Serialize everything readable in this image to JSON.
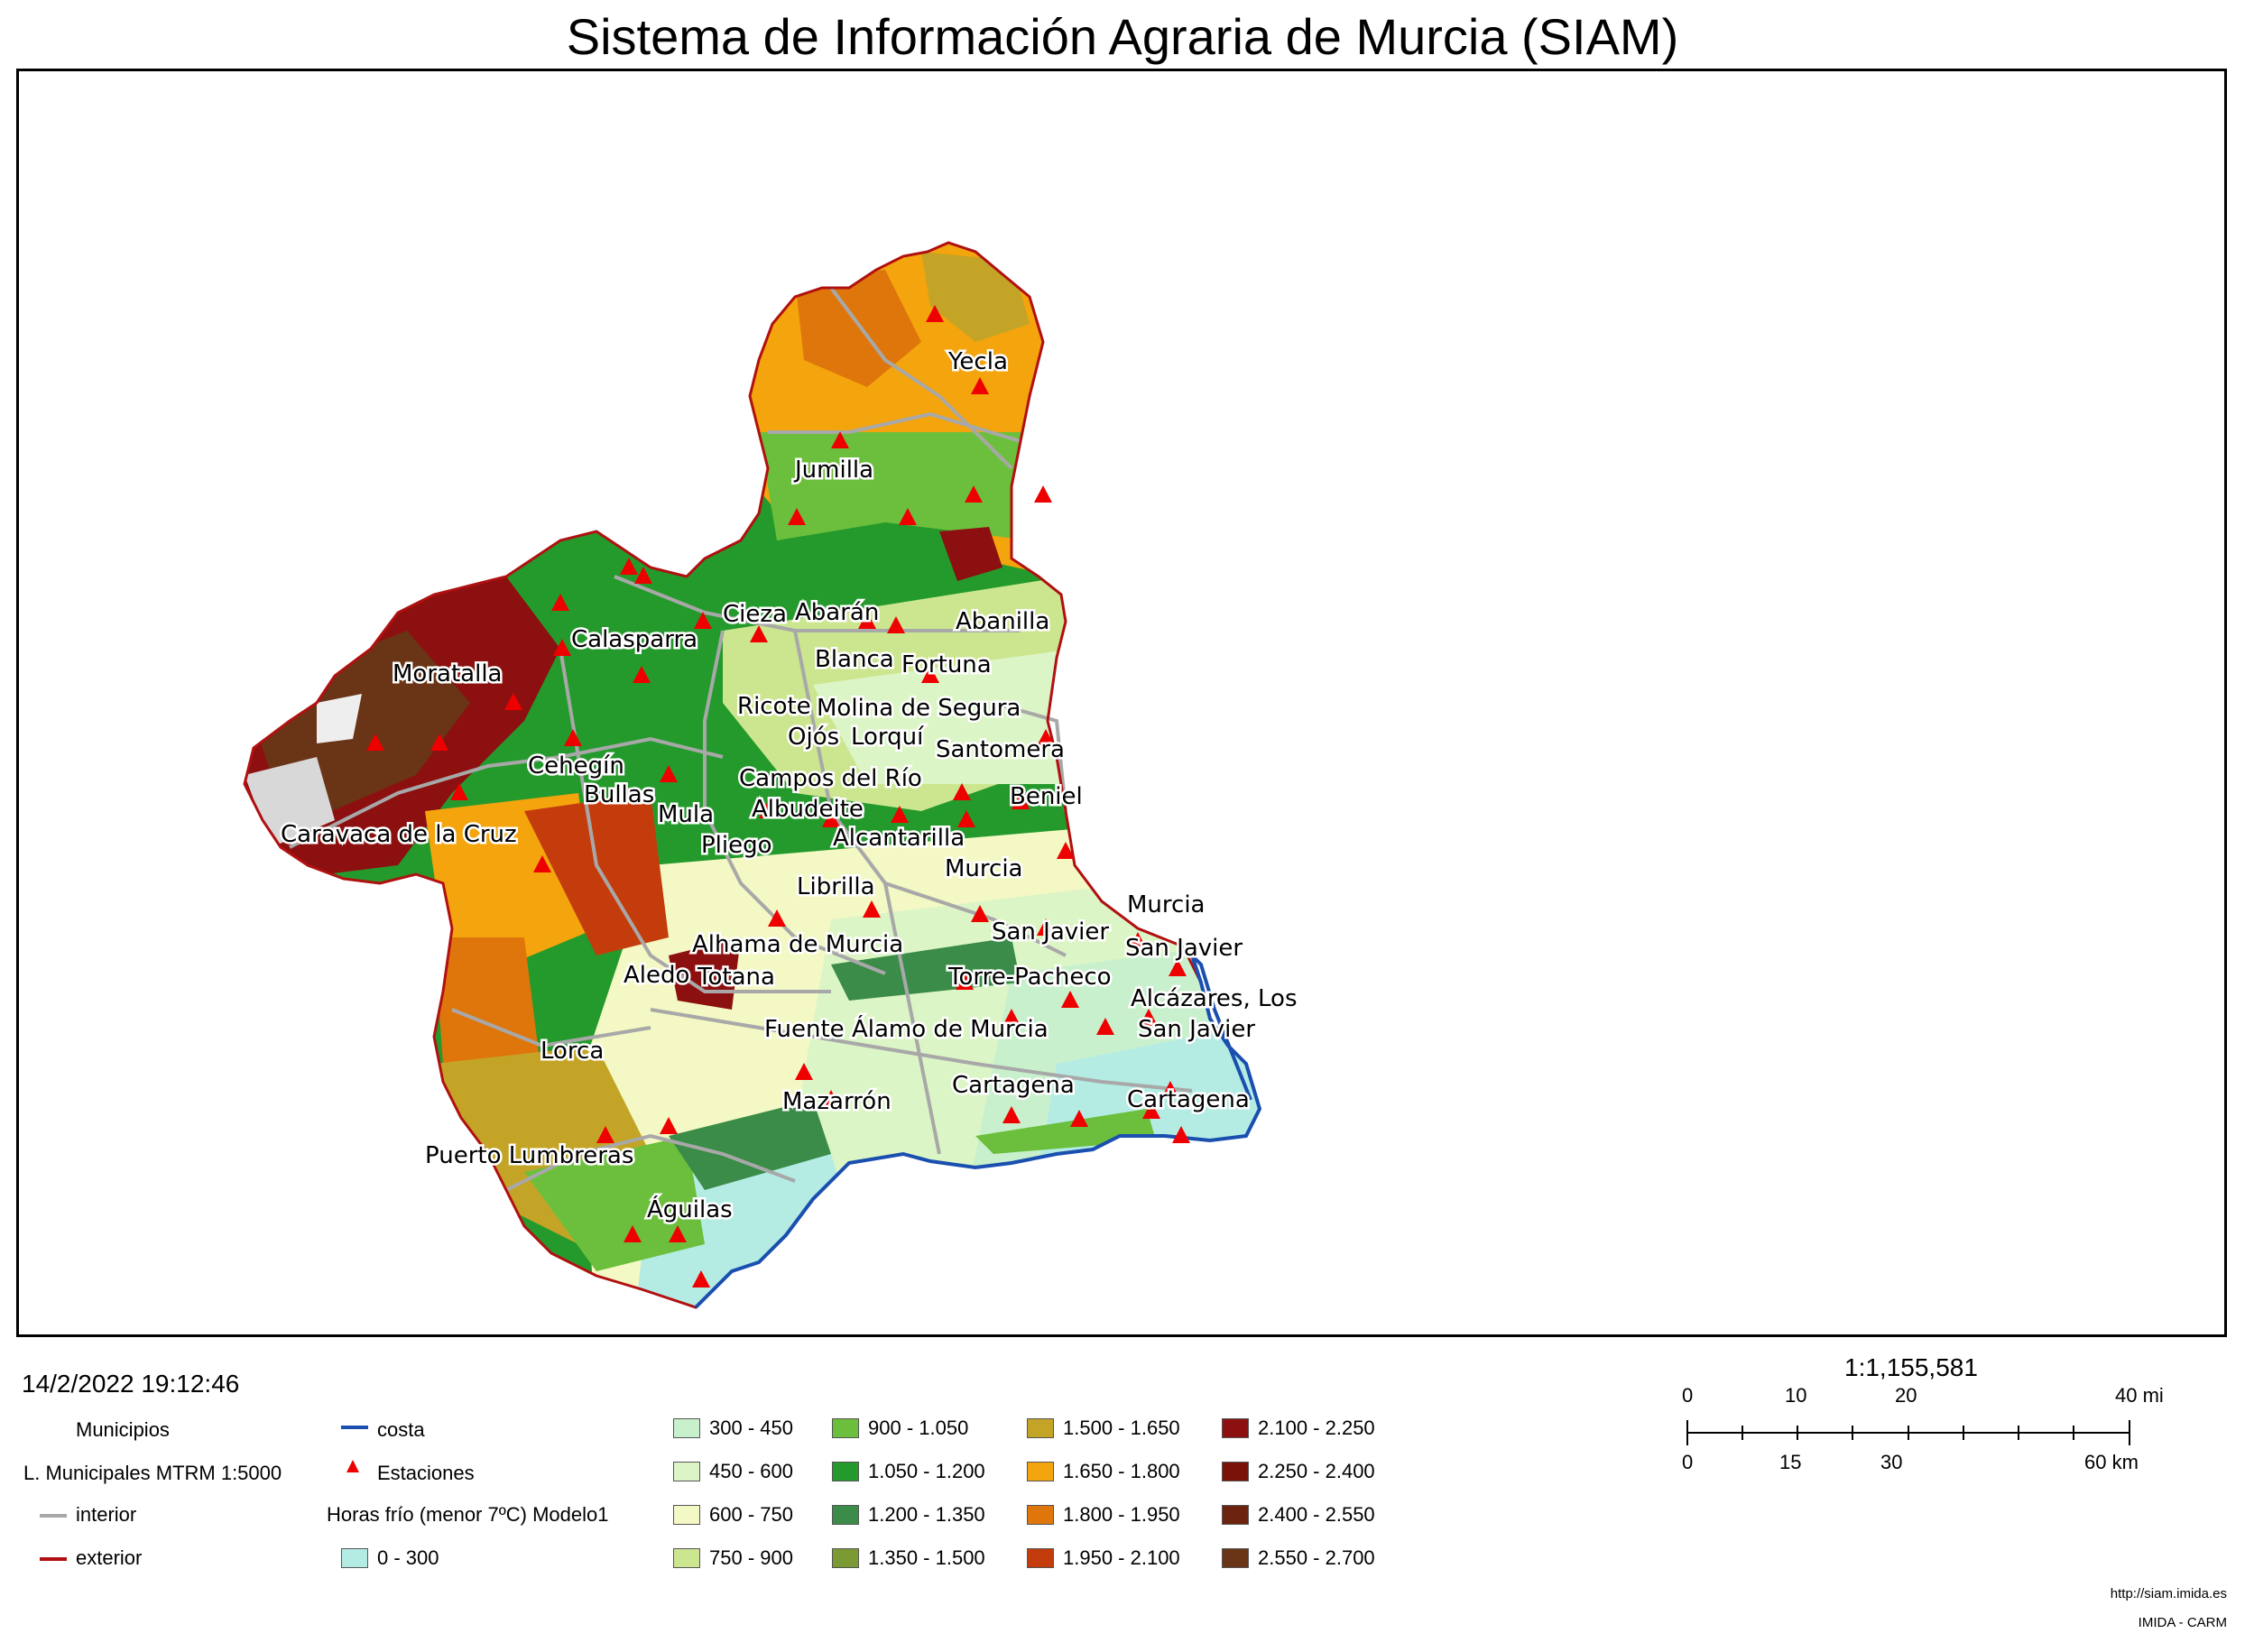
{
  "title": "Sistema de Información Agraria de Murcia (SIAM)",
  "timestamp": "14/2/2022 19:12:46",
  "map_labels": [
    {
      "id": "yecla",
      "text": "Yecla"
    },
    {
      "id": "jumilla",
      "text": "Jumilla"
    },
    {
      "id": "cieza",
      "text": "Cieza"
    },
    {
      "id": "abaran",
      "text": "Abarán"
    },
    {
      "id": "abanilla",
      "text": "Abanilla"
    },
    {
      "id": "calasparra",
      "text": "Calasparra"
    },
    {
      "id": "blanca",
      "text": "Blanca"
    },
    {
      "id": "fortuna",
      "text": "Fortuna"
    },
    {
      "id": "moratalla",
      "text": "Moratalla"
    },
    {
      "id": "ricote",
      "text": "Ricote"
    },
    {
      "id": "molina",
      "text": "Molina de Segura"
    },
    {
      "id": "ojos",
      "text": "Ojós"
    },
    {
      "id": "lorqui",
      "text": "Lorquí"
    },
    {
      "id": "santomera",
      "text": "Santomera"
    },
    {
      "id": "cehegin",
      "text": "Cehegín"
    },
    {
      "id": "campos",
      "text": "Campos del Río"
    },
    {
      "id": "bullas",
      "text": "Bullas"
    },
    {
      "id": "beniel",
      "text": "Beniel"
    },
    {
      "id": "mula",
      "text": "Mula"
    },
    {
      "id": "albudeite",
      "text": "Albudeite"
    },
    {
      "id": "caravaca",
      "text": "Caravaca de la Cruz"
    },
    {
      "id": "alcantarilla",
      "text": "Alcantarilla"
    },
    {
      "id": "pliego",
      "text": "Pliego"
    },
    {
      "id": "murcia1",
      "text": "Murcia"
    },
    {
      "id": "librilla",
      "text": "Librilla"
    },
    {
      "id": "murcia2",
      "text": "Murcia"
    },
    {
      "id": "sanjavier1",
      "text": "San Javier"
    },
    {
      "id": "alhama",
      "text": "Alhama de Murcia"
    },
    {
      "id": "sanjavier2",
      "text": "San Javier"
    },
    {
      "id": "aledo",
      "text": "Aledo"
    },
    {
      "id": "totana",
      "text": "Totana"
    },
    {
      "id": "torrepacheco",
      "text": "Torre-Pacheco"
    },
    {
      "id": "alcazares",
      "text": "Alcázares, Los"
    },
    {
      "id": "fuentealamo",
      "text": "Fuente Álamo de Murcia"
    },
    {
      "id": "sanjavier3",
      "text": "San Javier"
    },
    {
      "id": "lorca",
      "text": "Lorca"
    },
    {
      "id": "cartagena1",
      "text": "Cartagena"
    },
    {
      "id": "mazarron",
      "text": "Mazarrón"
    },
    {
      "id": "cartagena2",
      "text": "Cartagena"
    },
    {
      "id": "puertolumbreras",
      "text": "Puerto Lumbreras"
    },
    {
      "id": "aguilas",
      "text": "Águilas"
    }
  ],
  "legend": {
    "municipios": "Municipios",
    "lmunicipales": "L. Municipales MTRM 1:5000",
    "interior": "interior",
    "exterior": "exterior",
    "costa": "costa",
    "estaciones": "Estaciones",
    "horas_frio": "Horas frío (menor 7ºC) Modelo1",
    "colors": {
      "interior": "#a8a8a8",
      "exterior": "#b01010",
      "costa": "#1a4fb0",
      "estacion": "#ee0000"
    },
    "classes": [
      {
        "label": "0 - 300",
        "color": "#b4ece4"
      },
      {
        "label": "300 - 450",
        "color": "#c8f0cc"
      },
      {
        "label": "450 - 600",
        "color": "#dcf5c6"
      },
      {
        "label": "600 - 750",
        "color": "#f4f8c4"
      },
      {
        "label": "750 - 900",
        "color": "#cce690"
      },
      {
        "label": "900 - 1.050",
        "color": "#6cbf3c"
      },
      {
        "label": "1.050 - 1.200",
        "color": "#249a2c"
      },
      {
        "label": "1.200 - 1.350",
        "color": "#3a8c48"
      },
      {
        "label": "1.350 - 1.500",
        "color": "#7c9a34"
      },
      {
        "label": "1.500 - 1.650",
        "color": "#c4a426"
      },
      {
        "label": "1.650 - 1.800",
        "color": "#f4a40c"
      },
      {
        "label": "1.800 - 1.950",
        "color": "#de760c"
      },
      {
        "label": "1.950 - 2.100",
        "color": "#c43c0c"
      },
      {
        "label": "2.100 - 2.250",
        "color": "#8c1010"
      },
      {
        "label": "2.250 - 2.400",
        "color": "#7a1208"
      },
      {
        "label": "2.400 - 2.550",
        "color": "#6c2410"
      },
      {
        "label": "2.550 - 2.700",
        "color": "#6a3416"
      }
    ]
  },
  "scale": {
    "ratio": "1:1,155,581",
    "mi_ticks": [
      "0",
      "10",
      "20",
      "40 mi"
    ],
    "km_ticks": [
      "0",
      "15",
      "30",
      "60 km"
    ]
  },
  "footer": {
    "url": "http://siam.imida.es",
    "org": "IMIDA - CARM"
  }
}
